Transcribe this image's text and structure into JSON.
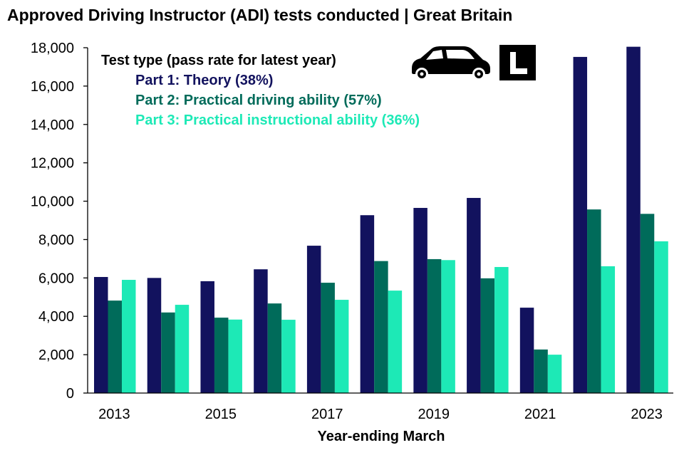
{
  "chart_data": {
    "type": "bar",
    "title": "Approved Driving Instructor (ADI) tests conducted | Great Britain",
    "xlabel": "Year-ending March",
    "ylabel": "",
    "ylim": [
      0,
      18000
    ],
    "yticks": [
      0,
      2000,
      4000,
      6000,
      8000,
      10000,
      12000,
      14000,
      16000,
      18000
    ],
    "ytick_labels": [
      "0",
      "2,000",
      "4,000",
      "6,000",
      "8,000",
      "10,000",
      "12,000",
      "14,000",
      "16,000",
      "18,000"
    ],
    "categories": [
      "2013",
      "2014",
      "2015",
      "2016",
      "2017",
      "2018",
      "2019",
      "2020",
      "2021",
      "2022",
      "2023"
    ],
    "xtick_labels": [
      "2013",
      "",
      "2015",
      "",
      "2017",
      "",
      "2019",
      "",
      "2021",
      "",
      "2023"
    ],
    "grid": false,
    "legend_title": "Test type (pass rate for latest year)",
    "legend_position": "top-left",
    "series": [
      {
        "name": "Part 1: Theory (38%)",
        "color": "#12125e",
        "values": [
          6050,
          6000,
          5830,
          6450,
          7680,
          9270,
          9650,
          10170,
          4450,
          17520,
          18050
        ]
      },
      {
        "name": "Part 2: Practical driving ability (57%)",
        "color": "#006b5a",
        "values": [
          4820,
          4200,
          3930,
          4670,
          5750,
          6880,
          6980,
          5980,
          2270,
          9570,
          9340
        ]
      },
      {
        "name": "Part 3: Practical instructional ability (36%)",
        "color": "#1de9b6",
        "values": [
          5900,
          4600,
          3830,
          3820,
          4860,
          5340,
          6930,
          6570,
          2000,
          6610,
          7910
        ]
      }
    ]
  },
  "icons": {
    "car": "car-icon",
    "learner_plate": "learner-plate-icon",
    "learner_plate_letter": "L"
  }
}
